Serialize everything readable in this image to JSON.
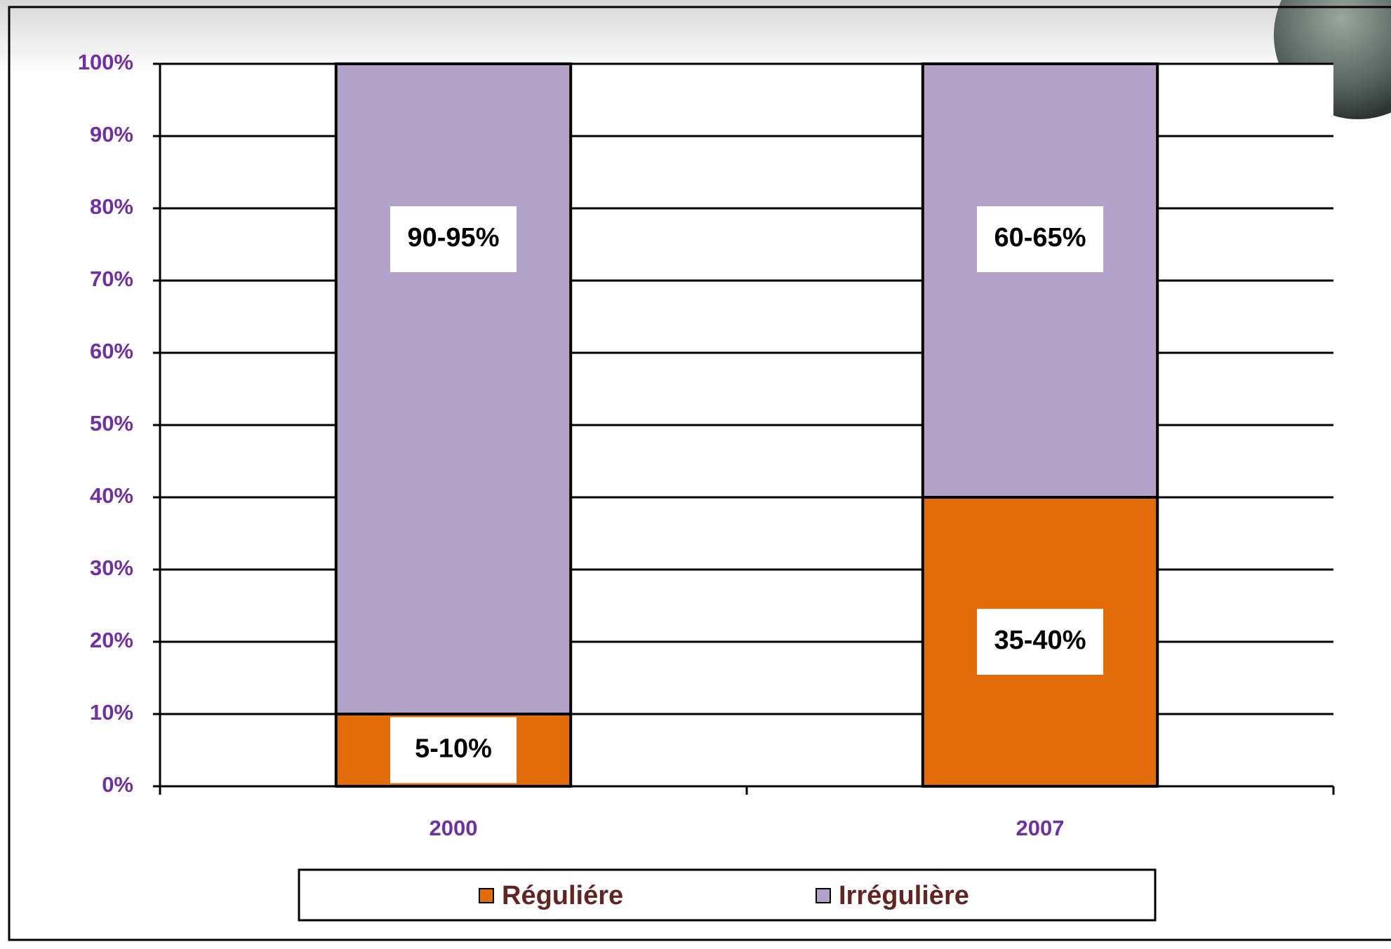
{
  "chart_data": {
    "type": "stacked_bar",
    "categories": [
      "2000",
      "2007"
    ],
    "series": [
      {
        "name": "Réguliére",
        "color": "#e36c0a",
        "values": [
          10,
          40
        ],
        "value_labels": [
          "5-10%",
          "35-40%"
        ]
      },
      {
        "name": "Irrégulière",
        "color": "#b3a2c7",
        "values": [
          90,
          60
        ],
        "value_labels": [
          "90-95%",
          "60-65%"
        ]
      }
    ],
    "ylim": [
      0,
      100
    ],
    "yticks": [
      {
        "value": 0,
        "label": "0%"
      },
      {
        "value": 10,
        "label": "10%"
      },
      {
        "value": 20,
        "label": "20%"
      },
      {
        "value": 30,
        "label": "30%"
      },
      {
        "value": 40,
        "label": "40%"
      },
      {
        "value": 50,
        "label": "50%"
      },
      {
        "value": 60,
        "label": "60%"
      },
      {
        "value": 70,
        "label": "70%"
      },
      {
        "value": 80,
        "label": "80%"
      },
      {
        "value": 90,
        "label": "90%"
      },
      {
        "value": 100,
        "label": "100%"
      }
    ],
    "grid": true,
    "legend": "bottom"
  }
}
